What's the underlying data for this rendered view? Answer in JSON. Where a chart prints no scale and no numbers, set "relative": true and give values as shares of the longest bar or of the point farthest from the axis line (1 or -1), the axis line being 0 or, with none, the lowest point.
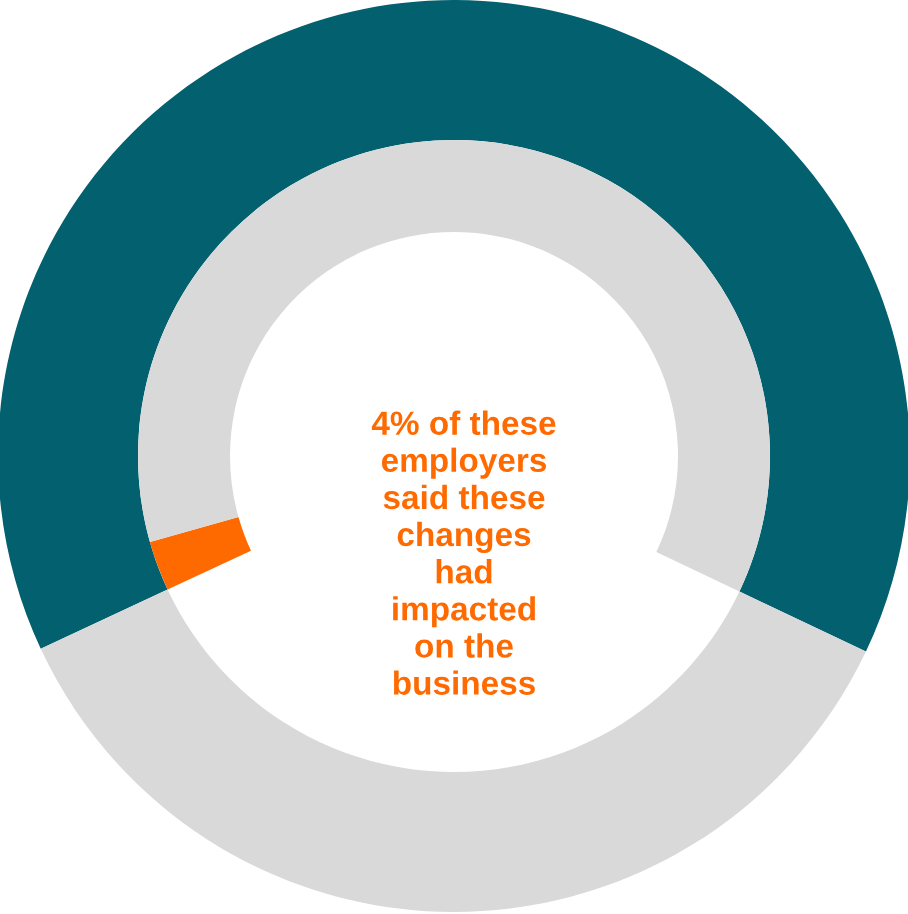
{
  "chart_data": {
    "type": "donut",
    "relative": true,
    "series": [
      {
        "values": [
          64,
          36
        ],
        "colors": [
          "#02606f",
          "#d9d9d9"
        ]
      },
      {
        "values": [
          4,
          96
        ],
        "colors": [
          "#ff6a00",
          "#d9d9d9"
        ]
      }
    ],
    "annotations": [
      "4% of these\nemployers\nsaid these\nchanges\nhad\nimpacted\non the\nbusiness"
    ],
    "legend": false
  }
}
